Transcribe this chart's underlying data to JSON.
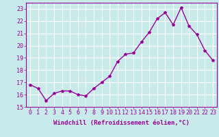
{
  "x": [
    0,
    1,
    2,
    3,
    4,
    5,
    6,
    7,
    8,
    9,
    10,
    11,
    12,
    13,
    14,
    15,
    16,
    17,
    18,
    19,
    20,
    21,
    22,
    23
  ],
  "y": [
    16.8,
    16.5,
    15.5,
    16.1,
    16.3,
    16.3,
    16.0,
    15.9,
    16.5,
    17.0,
    17.5,
    18.7,
    19.3,
    19.4,
    20.3,
    21.1,
    22.2,
    22.7,
    21.7,
    23.1,
    21.6,
    20.9,
    19.6,
    18.8
  ],
  "line_color": "#990099",
  "marker": "*",
  "marker_size": 3,
  "bg_color": "#c8eaea",
  "grid_color": "#ffffff",
  "xlabel": "Windchill (Refroidissement éolien,°C)",
  "ylim": [
    15,
    23.5
  ],
  "yticks": [
    15,
    16,
    17,
    18,
    19,
    20,
    21,
    22,
    23
  ],
  "xticks": [
    0,
    1,
    2,
    3,
    4,
    5,
    6,
    7,
    8,
    9,
    10,
    11,
    12,
    13,
    14,
    15,
    16,
    17,
    18,
    19,
    20,
    21,
    22,
    23
  ],
  "xlabel_fontsize": 6.5,
  "tick_fontsize": 6,
  "line_width": 1.0
}
